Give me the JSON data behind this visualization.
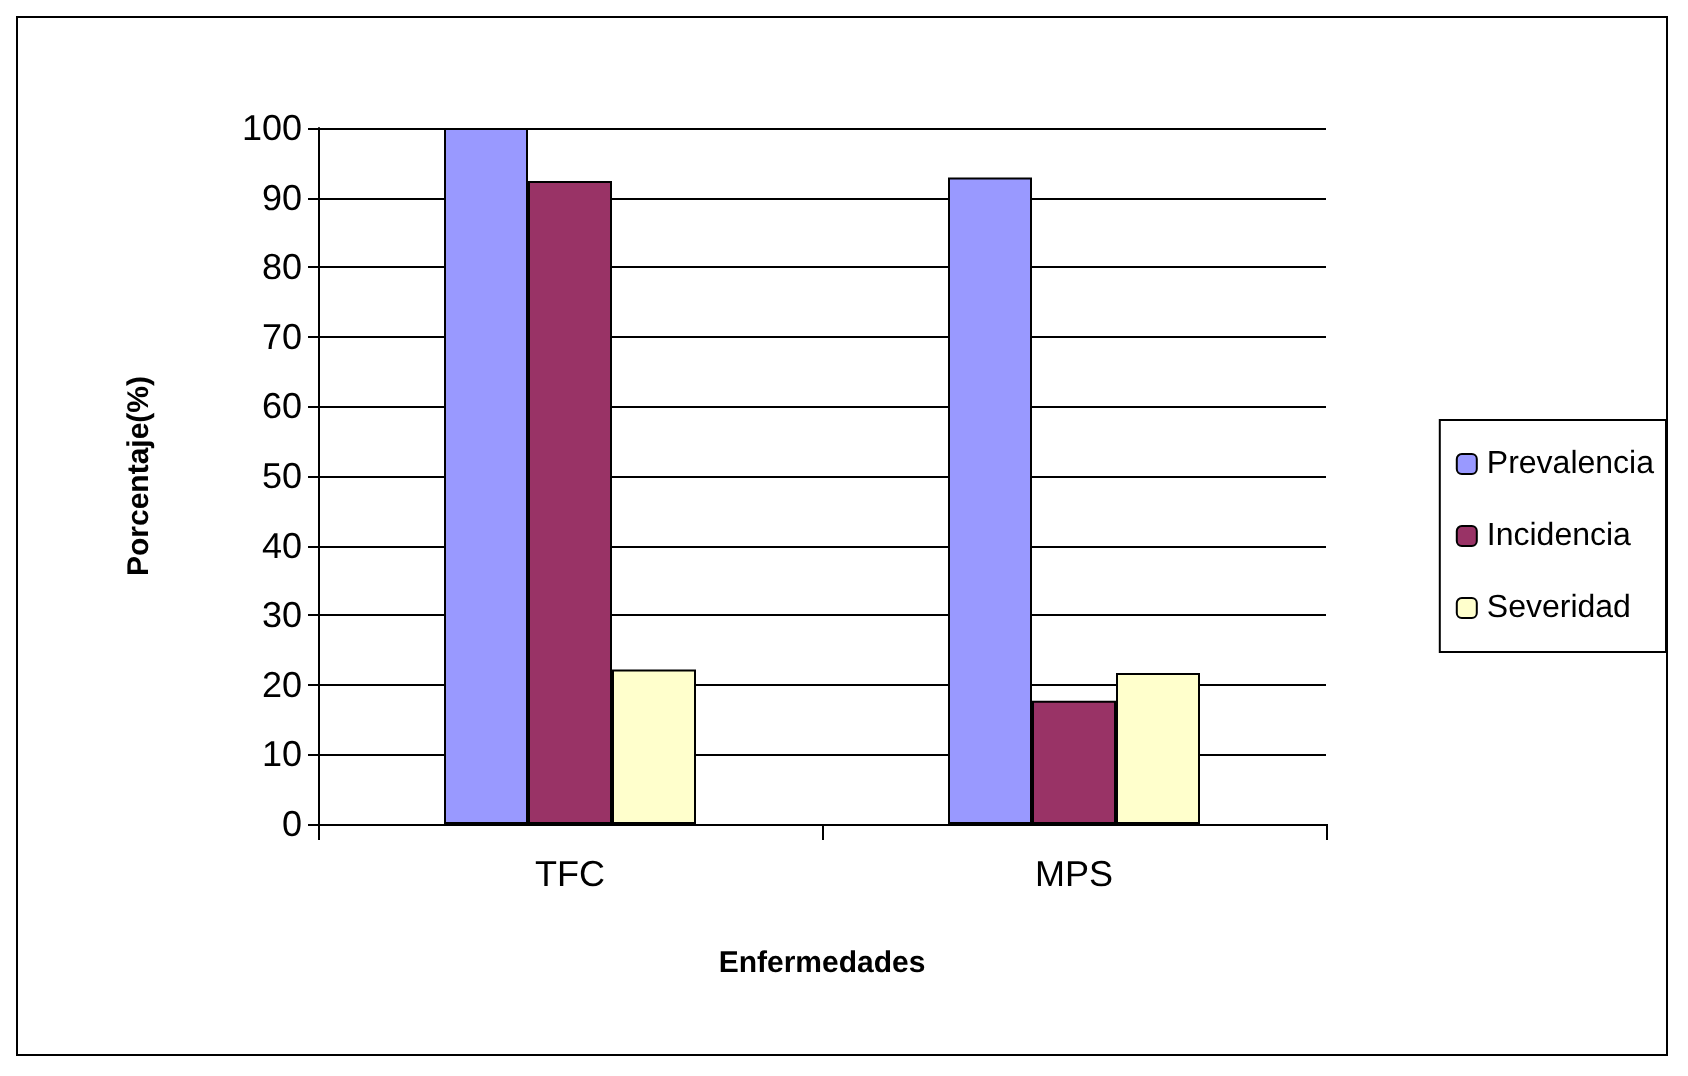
{
  "chart_data": {
    "type": "bar",
    "xlabel": "Enfermedades",
    "ylabel": "Porcentaje(%)",
    "categories": [
      "TFC",
      "MPS"
    ],
    "series": [
      {
        "name": "Prevalencia",
        "color": "#9999ff",
        "values": [
          100,
          92.9
        ]
      },
      {
        "name": "Incidencia",
        "color": "#993366",
        "values": [
          92.4,
          17.7
        ]
      },
      {
        "name": "Severidad",
        "color": "#ffffcc",
        "values": [
          22.2,
          21.7
        ]
      }
    ],
    "ylim": [
      0,
      100
    ],
    "yticks": [
      0,
      10,
      20,
      30,
      40,
      50,
      60,
      70,
      80,
      90,
      100
    ],
    "grid": "y",
    "legend": "right"
  }
}
